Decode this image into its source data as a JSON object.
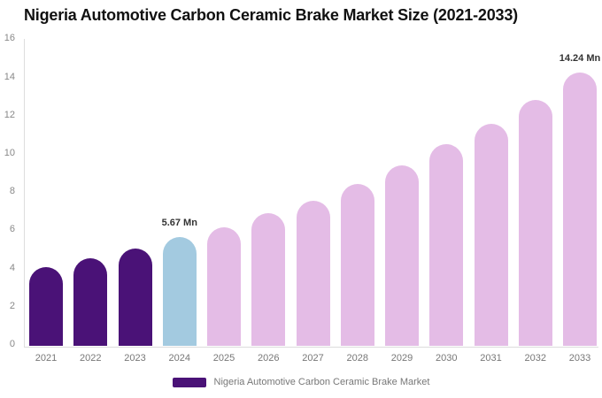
{
  "page": {
    "background": "#ffffff"
  },
  "chart": {
    "title": "Nigeria Automotive Carbon Ceramic Brake Market Size (2021-2033)",
    "legend": {
      "label": "Nigeria Automotive Carbon Ceramic Brake Market",
      "swatch_color": "#4a1277"
    }
  },
  "chart_data": {
    "type": "bar",
    "title": "Nigeria Automotive Carbon Ceramic Brake Market Size (2021-2033)",
    "categories": [
      "2021",
      "2022",
      "2023",
      "2024",
      "2025",
      "2026",
      "2027",
      "2028",
      "2029",
      "2030",
      "2031",
      "2032",
      "2033"
    ],
    "values": [
      4.1,
      4.58,
      5.05,
      5.67,
      6.18,
      6.9,
      7.55,
      8.45,
      9.42,
      10.5,
      11.55,
      12.8,
      14.24
    ],
    "unit": "Mn",
    "bar_colors": [
      "#4a1277",
      "#4a1277",
      "#4a1277",
      "#a3cae0",
      "#e4bce6",
      "#e4bce6",
      "#e4bce6",
      "#e4bce6",
      "#e4bce6",
      "#e4bce6",
      "#e4bce6",
      "#e4bce6",
      "#e4bce6"
    ],
    "annotations": [
      {
        "category": "2024",
        "text": "5.67 Mn"
      },
      {
        "category": "2033",
        "text": "14.24 Mn"
      }
    ],
    "xlabel": "",
    "ylabel": "",
    "ylim": [
      0,
      16
    ],
    "yticks": [
      0,
      2,
      4,
      6,
      8,
      10,
      12,
      14,
      16
    ],
    "grid": false,
    "legend_position": "bottom",
    "colors": {
      "historical": "#4a1277",
      "base_year": "#a3cae0",
      "forecast": "#e4bce6",
      "axis_line": "#dddddd",
      "tick_label": "#888888",
      "annotation_text": "#333333"
    }
  }
}
